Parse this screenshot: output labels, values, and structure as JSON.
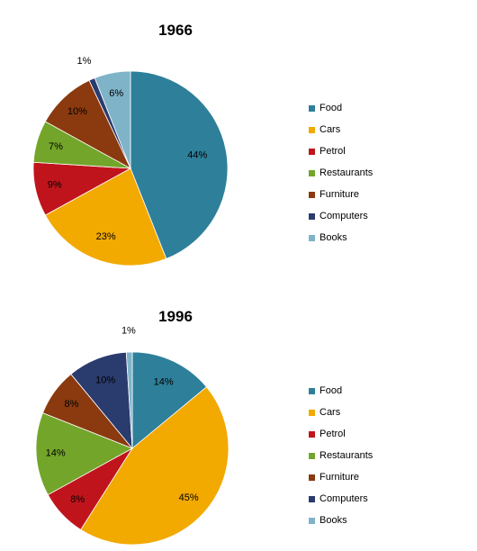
{
  "chart_data": [
    {
      "type": "pie",
      "title": "1966",
      "categories": [
        "Food",
        "Cars",
        "Petrol",
        "Restaurants",
        "Furniture",
        "Computers",
        "Books"
      ],
      "values": [
        44,
        23,
        9,
        7,
        10,
        1,
        6
      ],
      "value_labels": [
        "44%",
        "23%",
        "9%",
        "7%",
        "10%",
        "1%",
        "6%"
      ],
      "legend_position": "right"
    },
    {
      "type": "pie",
      "title": "1996",
      "categories": [
        "Food",
        "Cars",
        "Petrol",
        "Restaurants",
        "Furniture",
        "Computers",
        "Books"
      ],
      "values": [
        14,
        45,
        8,
        14,
        8,
        10,
        1
      ],
      "value_labels": [
        "14%",
        "45%",
        "8%",
        "14%",
        "8%",
        "10%",
        "1%"
      ],
      "legend_position": "right"
    }
  ],
  "colors": {
    "Food": "#2E7F9A",
    "Cars": "#F2A900",
    "Petrol": "#C0141C",
    "Restaurants": "#73A52A",
    "Furniture": "#8A3A0E",
    "Computers": "#2A3B6E",
    "Books": "#7FB3C8"
  }
}
